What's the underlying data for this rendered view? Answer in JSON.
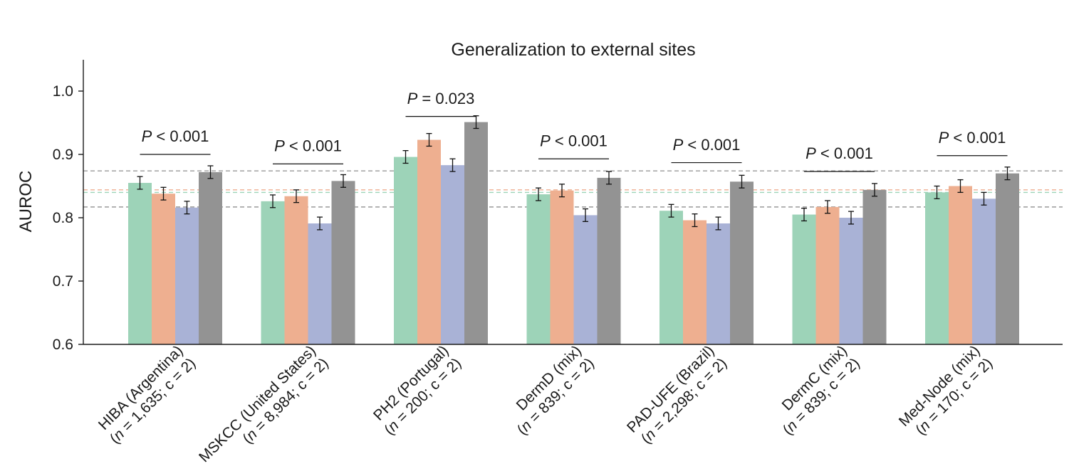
{
  "chart_data": {
    "type": "bar",
    "title": "Generalization to external sites",
    "ylabel": "AUROC",
    "xlabel": "",
    "ylim": [
      0.6,
      1.05
    ],
    "yticks": [
      0.6,
      0.7,
      0.8,
      0.9,
      1.0
    ],
    "ytick_labels": [
      "0.6",
      "0.7",
      "0.8",
      "0.9",
      "1.0"
    ],
    "categories": [
      {
        "line1": "HIBA (Argentina)",
        "line2_n": "n",
        "line2_rest": " = 1,635; c = 2)"
      },
      {
        "line1": "MSKCC (United States)",
        "line2_n": "n",
        "line2_rest": " = 8,984; c = 2)"
      },
      {
        "line1": "PH2 (Portugal)",
        "line2_n": "n",
        "line2_rest": " = 200; c = 2)"
      },
      {
        "line1": "DermD (mix)",
        "line2_n": "n",
        "line2_rest": " = 839; c = 2)"
      },
      {
        "line1": "PAD-UFE (Brazil)",
        "line2_n": "n",
        "line2_rest": " = 2,298; c = 2)"
      },
      {
        "line1": "DermC (mix)",
        "line2_n": "n",
        "line2_rest": " = 839; c = 2)"
      },
      {
        "line1": "Med-Node (mix)",
        "line2_n": "n",
        "line2_rest": " = 170; c = 2)"
      }
    ],
    "series": [
      {
        "color": "#9dd3b8",
        "values": [
          0.855,
          0.826,
          0.896,
          0.837,
          0.811,
          0.805,
          0.84
        ],
        "err": [
          0.01,
          0.01,
          0.01,
          0.01,
          0.01,
          0.01,
          0.01
        ]
      },
      {
        "color": "#eeaf90",
        "values": [
          0.838,
          0.834,
          0.923,
          0.843,
          0.796,
          0.817,
          0.85
        ],
        "err": [
          0.01,
          0.01,
          0.01,
          0.01,
          0.01,
          0.01,
          0.01
        ]
      },
      {
        "color": "#a9b2d6",
        "values": [
          0.816,
          0.791,
          0.883,
          0.804,
          0.791,
          0.8,
          0.83
        ],
        "err": [
          0.01,
          0.01,
          0.01,
          0.01,
          0.01,
          0.01,
          0.01
        ]
      },
      {
        "color": "#939393",
        "values": [
          0.872,
          0.858,
          0.951,
          0.863,
          0.857,
          0.844,
          0.87
        ],
        "err": [
          0.01,
          0.01,
          0.01,
          0.01,
          0.01,
          0.01,
          0.01
        ]
      }
    ],
    "reference_lines": [
      {
        "value": 0.874,
        "color": "#999999"
      },
      {
        "value": 0.844,
        "color": "#eeaf90"
      },
      {
        "value": 0.84,
        "color": "#9dd3b8"
      },
      {
        "value": 0.817,
        "color": "#999999"
      }
    ],
    "annotations": [
      {
        "p": "P",
        "text": " < 0.001",
        "bracket_y": 0.9,
        "text_y": 0.92
      },
      {
        "p": "P",
        "text": " < 0.001",
        "bracket_y": 0.885,
        "text_y": 0.905
      },
      {
        "p": "P",
        "text": " = 0.023",
        "bracket_y": 0.96,
        "text_y": 0.98
      },
      {
        "p": "P",
        "text": " < 0.001",
        "bracket_y": 0.893,
        "text_y": 0.913
      },
      {
        "p": "P",
        "text": " < 0.001",
        "bracket_y": 0.887,
        "text_y": 0.907
      },
      {
        "p": "P",
        "text": " < 0.001",
        "bracket_y": 0.873,
        "text_y": 0.893
      },
      {
        "p": "P",
        "text": " < 0.001",
        "bracket_y": 0.898,
        "text_y": 0.918
      }
    ]
  }
}
